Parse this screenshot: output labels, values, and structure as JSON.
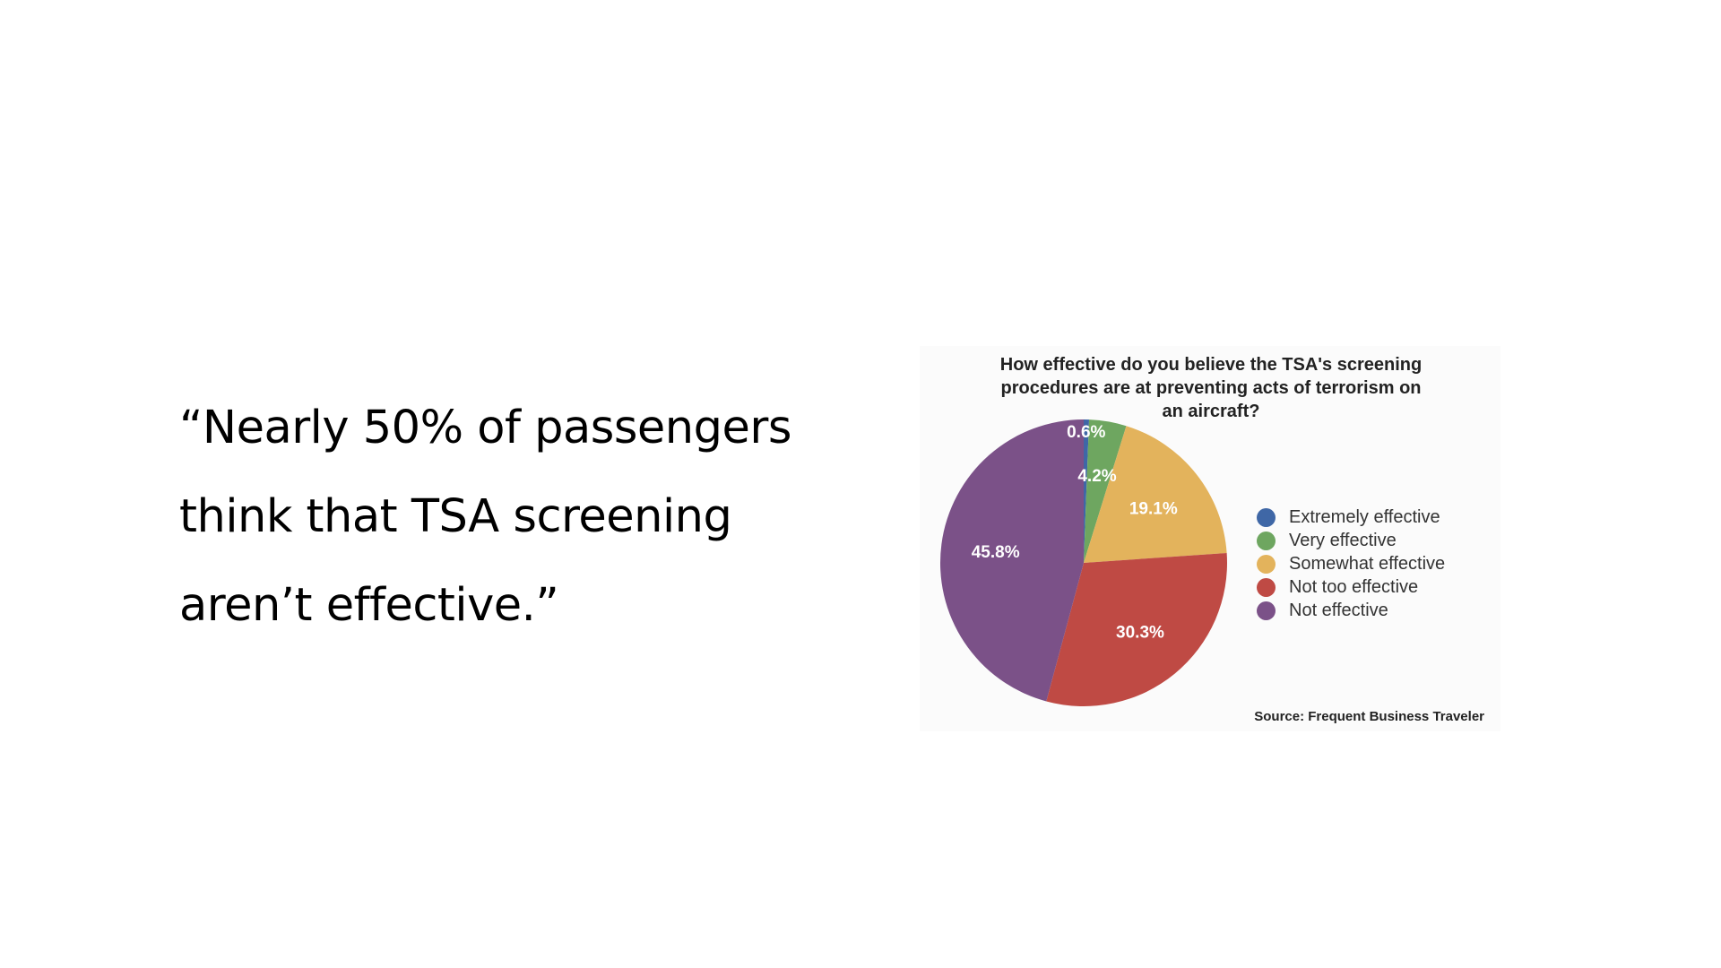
{
  "slide": {
    "quote_lines": [
      "“Nearly 50% of passengers",
      "think that TSA screening",
      "aren’t effective.”"
    ]
  },
  "chart_data": {
    "type": "pie",
    "title_lines": [
      "How effective do you believe the TSA's screening",
      "procedures are at preventing acts of terrorism on",
      "an aircraft?"
    ],
    "slices": [
      {
        "name": "Extremely effective",
        "value": 0.6,
        "label": "0.6%",
        "color": "#3f67a6"
      },
      {
        "name": "Very effective",
        "value": 4.2,
        "label": "4.2%",
        "color": "#6ea660"
      },
      {
        "name": "Somewhat effective",
        "value": 19.1,
        "label": "19.1%",
        "color": "#e3b35c"
      },
      {
        "name": "Not too effective",
        "value": 30.3,
        "label": "30.3%",
        "color": "#bf4a44"
      },
      {
        "name": "Not effective",
        "value": 45.8,
        "label": "45.8%",
        "color": "#7b5188"
      }
    ],
    "legend_position": "right",
    "source": "Source: Frequent Business Traveler"
  }
}
